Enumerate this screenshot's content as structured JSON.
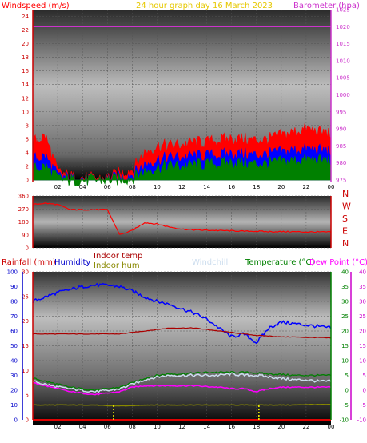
{
  "header": {
    "wind_title": "Windspeed (m/s)",
    "graph_title": "24 hour graph day   16 March 2023",
    "baro_title": "Barometer (hpa)"
  },
  "legend": {
    "rainfall": "Rainfall (mm)",
    "humidity": "Humidity",
    "indoor_temp": "Indoor temp",
    "indoor_hum": "Indoor hum",
    "windchill": "Windchill",
    "temperature": "Temperature (°C)",
    "dewpoint": "Dew Point (°C)"
  },
  "colors": {
    "wind_gust": "#ff0000",
    "wind_avg": "#0000ff",
    "wind_low": "#008000",
    "barometer": "#cc33cc",
    "direction": "#ff0000",
    "humidity": "#0000ff",
    "indoor_temp": "#aa0000",
    "indoor_hum": "#888800",
    "windchill": "#ccddee",
    "temperature": "#008000",
    "dewpoint": "#ff00ff",
    "rainfall": "#ff0000"
  },
  "chart_data": [
    {
      "type": "line",
      "ylim_left": [
        0,
        25
      ],
      "ylim_right": [
        975,
        1025
      ],
      "x_ticks": [
        "02",
        "04",
        "06",
        "08",
        "10",
        "12",
        "14",
        "16",
        "18",
        "20",
        "22",
        "00"
      ],
      "y_ticks_left": [
        0,
        2,
        4,
        6,
        8,
        10,
        12,
        14,
        16,
        18,
        20,
        22,
        24
      ],
      "y_ticks_right": [
        975,
        980,
        985,
        990,
        995,
        1000,
        1005,
        1010,
        1015,
        1020,
        1025
      ],
      "hours": [
        0,
        1,
        2,
        3,
        4,
        5,
        6,
        7,
        8,
        9,
        10,
        11,
        12,
        13,
        14,
        15,
        16,
        17,
        18,
        19,
        20,
        21,
        22,
        23,
        24
      ],
      "series": [
        {
          "name": "Gust",
          "values": [
            5.5,
            6.5,
            1.2,
            0.5,
            0.3,
            0.2,
            0.3,
            1.0,
            1.5,
            4.0,
            5.0,
            5.0,
            5.2,
            5.5,
            5.5,
            5.8,
            6.0,
            6.0,
            5.8,
            6.0,
            6.5,
            7.0,
            7.5,
            7.0,
            6.8
          ]
        },
        {
          "name": "Average",
          "values": [
            3.0,
            3.5,
            0.6,
            0.2,
            0.1,
            0.0,
            0.1,
            0.4,
            0.8,
            2.2,
            3.0,
            3.2,
            3.3,
            3.5,
            3.5,
            3.6,
            3.8,
            3.8,
            3.6,
            3.8,
            4.0,
            4.3,
            4.5,
            4.3,
            4.2
          ]
        },
        {
          "name": "Low",
          "values": [
            1.5,
            2.0,
            0.2,
            0.0,
            0.0,
            0.0,
            0.0,
            0.1,
            0.3,
            1.2,
            1.8,
            2.0,
            2.0,
            2.2,
            2.2,
            2.3,
            2.5,
            2.5,
            2.3,
            2.4,
            2.6,
            2.8,
            3.0,
            2.8,
            2.8
          ]
        },
        {
          "name": "Barometer",
          "values": [
            1020,
            1020,
            1020,
            1020,
            1020,
            1020,
            1020,
            1020,
            1020,
            1020,
            1020,
            1020,
            1020,
            1020,
            1020,
            1020,
            1020,
            1020,
            1020,
            1020,
            1020,
            1020,
            1020,
            1020,
            1020
          ]
        }
      ]
    },
    {
      "type": "line",
      "ylim": [
        0,
        360
      ],
      "y_ticks": [
        0,
        90,
        180,
        270,
        360
      ],
      "cardinals": [
        "N",
        "W",
        "S",
        "E",
        "N"
      ],
      "hours": [
        0,
        1,
        2,
        3,
        4,
        5,
        6,
        7,
        8,
        9,
        10,
        11,
        12,
        13,
        14,
        15,
        16,
        17,
        18,
        19,
        20,
        21,
        22,
        23,
        24
      ],
      "values": [
        300,
        310,
        300,
        265,
        265,
        265,
        265,
        90,
        120,
        175,
        165,
        145,
        130,
        125,
        122,
        120,
        118,
        115,
        115,
        112,
        112,
        112,
        110,
        110,
        110
      ]
    },
    {
      "type": "line",
      "ylim_humidity": [
        0,
        100
      ],
      "ylim_temp": [
        -10,
        40
      ],
      "y_ticks_humidity": [
        0,
        10,
        20,
        30,
        40,
        50,
        60,
        70,
        80,
        90,
        100
      ],
      "y_ticks_temp": [
        -10,
        -5,
        0,
        5,
        10,
        15,
        20,
        25,
        30,
        35,
        40
      ],
      "rain_ticks": [
        0,
        5,
        10,
        15,
        20,
        25,
        30
      ],
      "hours": [
        0,
        1,
        2,
        3,
        4,
        5,
        6,
        7,
        8,
        9,
        10,
        11,
        12,
        13,
        14,
        15,
        16,
        17,
        18,
        19,
        20,
        21,
        22,
        23,
        24
      ],
      "series": [
        {
          "name": "Humidity",
          "values": [
            80,
            83,
            86,
            88,
            90,
            91,
            91,
            90,
            87,
            83,
            80,
            78,
            75,
            72,
            68,
            62,
            56,
            58,
            52,
            62,
            66,
            65,
            64,
            63,
            62
          ]
        },
        {
          "name": "Indoor temp",
          "values": [
            19,
            19,
            19,
            19,
            19,
            19,
            19,
            19,
            19.5,
            20,
            20.5,
            21,
            21,
            21,
            20.5,
            20,
            19.5,
            19,
            18.5,
            18.3,
            18,
            18,
            17.8,
            17.8,
            17.6
          ]
        },
        {
          "name": "Indoor hum",
          "values": [
            10,
            10,
            10,
            10,
            10,
            10,
            9.5,
            9.5,
            9.5,
            10,
            10,
            10,
            10,
            10,
            10,
            10,
            10,
            10,
            10,
            10,
            10,
            10,
            10.3,
            10.3,
            10.3
          ]
        },
        {
          "name": "Windchill",
          "values": [
            3,
            2,
            1,
            0.5,
            0,
            -0.5,
            -0.2,
            0.5,
            2,
            3.5,
            4.5,
            5,
            5,
            5,
            5,
            5,
            5.5,
            5,
            5,
            4.5,
            4,
            3.5,
            3.5,
            3,
            3
          ]
        },
        {
          "name": "Temperature",
          "values": [
            4,
            3,
            2,
            1,
            0.5,
            0,
            0.5,
            1,
            2.5,
            4,
            5,
            5.5,
            5.5,
            5.8,
            6,
            6,
            6,
            6,
            5.8,
            5.5,
            5.3,
            5,
            5,
            5,
            5
          ]
        },
        {
          "name": "Dew Point",
          "values": [
            2.5,
            1.5,
            0.5,
            -0.5,
            -1,
            -1.5,
            -1,
            -0.5,
            1,
            1.5,
            1.5,
            1.5,
            1.5,
            1.5,
            1.2,
            1,
            0.5,
            0.5,
            -0.5,
            0.5,
            1,
            1,
            1,
            1,
            1
          ]
        },
        {
          "name": "Rainfall",
          "values": [
            0,
            0,
            0,
            0,
            0,
            0,
            0,
            0,
            0,
            0,
            0,
            0,
            0,
            0,
            0,
            0,
            0,
            0,
            0,
            0,
            0,
            0,
            0,
            0,
            0
          ]
        }
      ]
    }
  ]
}
